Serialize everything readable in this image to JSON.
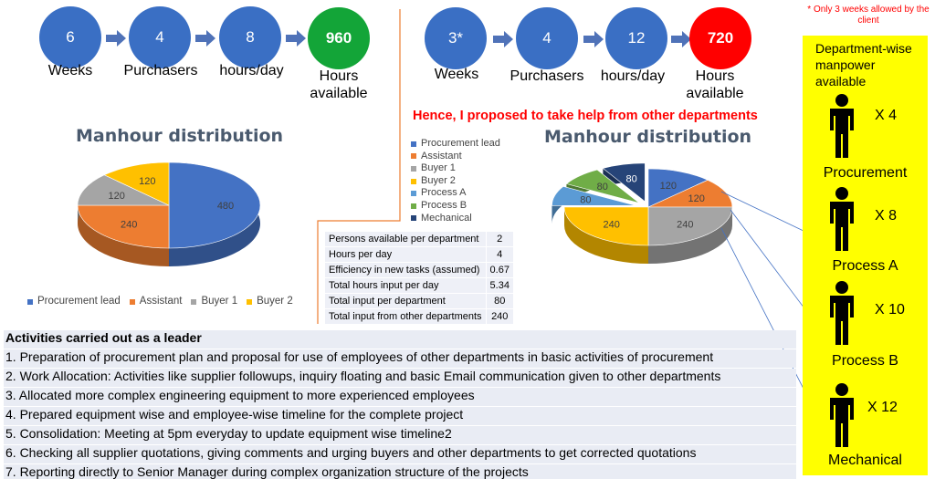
{
  "left_flow": {
    "steps": [
      {
        "value": "6",
        "label": "Weeks"
      },
      {
        "value": "4",
        "label": "Purchasers"
      },
      {
        "value": "8",
        "label": "hours/day"
      },
      {
        "value": "960",
        "label": "Hours available"
      }
    ],
    "colors": {
      "step": "#3a6fc4",
      "result": "#13a538"
    }
  },
  "right_flow": {
    "steps": [
      {
        "value": "3*",
        "label": "Weeks"
      },
      {
        "value": "4",
        "label": "Purchasers"
      },
      {
        "value": "12",
        "label": "hours/day"
      },
      {
        "value": "720",
        "label": "Hours available"
      }
    ],
    "colors": {
      "step": "#3a6fc4",
      "result": "#ff0000"
    }
  },
  "note": "* Only 3 weeks allowed by the client",
  "proposal": "Hence, I proposed to take help from other departments",
  "chart_data": [
    {
      "type": "pie",
      "title": "Manhour distribution",
      "categories": [
        "Procurement lead",
        "Assistant",
        "Buyer 1",
        "Buyer 2"
      ],
      "values": [
        480,
        240,
        120,
        120
      ],
      "colors": [
        "#4472c4",
        "#ed7d31",
        "#a5a5a5",
        "#ffc000"
      ],
      "legend": "bottom"
    },
    {
      "type": "pie",
      "title": "Manhour distribution",
      "categories": [
        "Procurement lead",
        "Assistant",
        "Buyer 1",
        "Buyer 2",
        "Process A",
        "Process B",
        "Mechanical"
      ],
      "values": [
        120,
        120,
        240,
        240,
        80,
        80,
        80
      ],
      "colors": [
        "#4472c4",
        "#ed7d31",
        "#a5a5a5",
        "#ffc000",
        "#5b9bd5",
        "#70ad47",
        "#264478"
      ],
      "legend": "left"
    }
  ],
  "info_table": [
    {
      "label": "Persons available per department",
      "value": "2"
    },
    {
      "label": "Hours per day",
      "value": "4"
    },
    {
      "label": "Efficiency in new tasks (assumed)",
      "value": "0.67"
    },
    {
      "label": "Total hours input per day",
      "value": "5.34"
    },
    {
      "label": "Total input per department",
      "value": "80"
    },
    {
      "label": "Total input from other departments",
      "value": "240"
    }
  ],
  "activities": {
    "heading": "Activities carried out as a leader",
    "items": [
      "1. Preparation of procurement plan and proposal for use of employees of other departments in basic activities of procurement",
      "2. Work Allocation: Activities like supplier followups, inquiry floating and basic Email communication given to other departments",
      "3. Allocated more complex engineering equipment to more experienced employees",
      "4. Prepared equipment wise and employee-wise timeline for the complete project",
      "5. Consolidation: Meeting at 5pm everyday to update equipment wise timeline2",
      "6. Checking all supplier quotations, giving comments and urging buyers and other departments to get corrected quotations",
      "7. Reporting directly to Senior Manager during complex organization structure of the projects"
    ]
  },
  "manpower": {
    "title": "Department-wise manpower available",
    "departments": [
      {
        "name": "Procurement",
        "count": "X 4"
      },
      {
        "name": "Process A",
        "count": "X 8"
      },
      {
        "name": "Process B",
        "count": "X 10"
      },
      {
        "name": "Mechanical",
        "count": "X 12"
      }
    ],
    "background": "#ffff00"
  }
}
